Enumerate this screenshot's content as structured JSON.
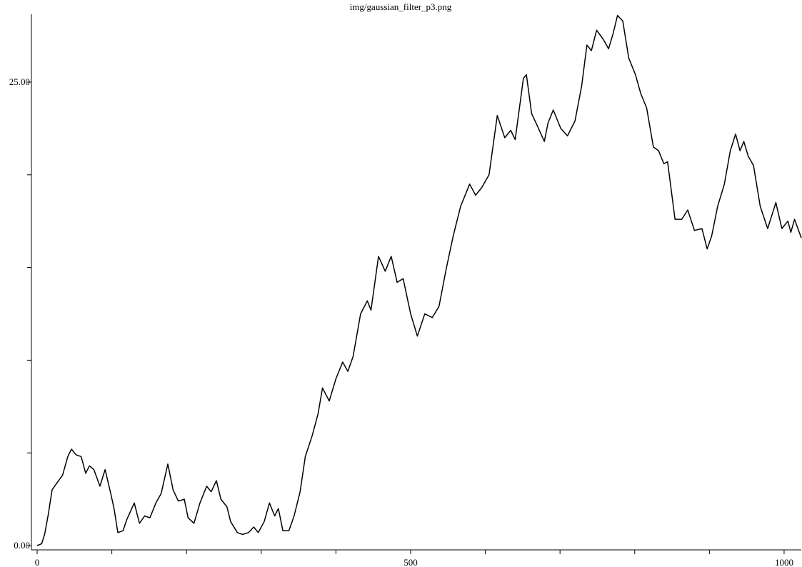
{
  "chart_data": {
    "type": "line",
    "title": "img/gaussian_filter_p3.png",
    "x": [
      0,
      6,
      10,
      15,
      20,
      27,
      34,
      41,
      46,
      52,
      59,
      65,
      70,
      76,
      84,
      91,
      98,
      103,
      108,
      115,
      120,
      130,
      137,
      144,
      151,
      159,
      166,
      175,
      182,
      189,
      197,
      202,
      210,
      218,
      227,
      233,
      240,
      246,
      254,
      259,
      268,
      275,
      283,
      290,
      296,
      304,
      311,
      318,
      323,
      329,
      337,
      344,
      352,
      359,
      368,
      376,
      382,
      391,
      400,
      409,
      416,
      423,
      433,
      442,
      447,
      457,
      466,
      474,
      482,
      490,
      500,
      509,
      519,
      529,
      538,
      548,
      557,
      567,
      579,
      587,
      595,
      605,
      616,
      626,
      634,
      640,
      651,
      655,
      662,
      669,
      679,
      684,
      691,
      701,
      710,
      720,
      729,
      736,
      742,
      749,
      758,
      765,
      771,
      777,
      784,
      792,
      801,
      808,
      816,
      825,
      832,
      839,
      844,
      854,
      863,
      871,
      880,
      890,
      897,
      903,
      911,
      920,
      928,
      935,
      941,
      946,
      952,
      959,
      968,
      978,
      989,
      997,
      1005,
      1009,
      1014,
      1023
    ],
    "series": [
      {
        "color": "#000000",
        "values": [
          0,
          0.1,
          0.6,
          1.7,
          3.0,
          3.4,
          3.8,
          4.8,
          5.2,
          4.9,
          4.8,
          3.9,
          4.3,
          4.1,
          3.2,
          4.1,
          2.9,
          2.0,
          0.7,
          0.8,
          1.4,
          2.3,
          1.2,
          1.6,
          1.5,
          2.3,
          2.8,
          4.4,
          3.0,
          2.4,
          2.5,
          1.5,
          1.2,
          2.3,
          3.2,
          2.9,
          3.5,
          2.5,
          2.1,
          1.3,
          0.7,
          0.6,
          0.7,
          1.0,
          0.7,
          1.3,
          2.3,
          1.6,
          2.0,
          0.8,
          0.8,
          1.6,
          2.9,
          4.8,
          5.9,
          7.1,
          8.5,
          7.8,
          9.0,
          9.9,
          9.4,
          10.2,
          12.5,
          13.2,
          12.7,
          15.6,
          14.8,
          15.6,
          14.2,
          14.4,
          12.5,
          11.3,
          12.5,
          12.3,
          12.9,
          15.0,
          16.7,
          18.3,
          19.5,
          18.9,
          19.3,
          20.0,
          23.2,
          22.0,
          22.4,
          21.9,
          25.2,
          25.4,
          23.3,
          22.7,
          21.8,
          22.8,
          23.5,
          22.5,
          22.1,
          22.9,
          24.8,
          27.0,
          26.7,
          27.8,
          27.3,
          26.8,
          27.6,
          28.6,
          28.3,
          26.3,
          25.4,
          24.4,
          23.6,
          21.5,
          21.3,
          20.6,
          20.7,
          17.6,
          17.6,
          18.1,
          17.0,
          17.1,
          16.0,
          16.7,
          18.3,
          19.5,
          21.3,
          22.2,
          21.3,
          21.8,
          21.0,
          20.5,
          18.3,
          17.1,
          18.5,
          17.1,
          17.5,
          16.9,
          17.6,
          16.6
        ]
      }
    ],
    "xlim": [
      0,
      1023
    ],
    "xticks": [
      0,
      500,
      1000
    ],
    "xminorticks": [
      100,
      200,
      300,
      400,
      600,
      700,
      800,
      900
    ],
    "ylim": [
      0,
      28.66
    ],
    "yticks": [
      {
        "value": 0,
        "label": "0.00"
      },
      {
        "value": 25,
        "label": "25.00"
      }
    ],
    "yminorticks": [
      5,
      10,
      15,
      20
    ]
  }
}
